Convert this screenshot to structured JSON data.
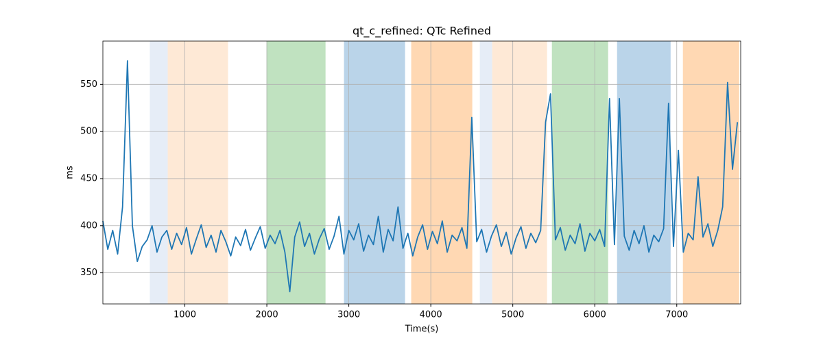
{
  "chart_data": {
    "type": "line",
    "title": "qt_c_refined: QTc Refined",
    "x_label": "Time(s)",
    "y_label": "ms",
    "x": [
      0,
      60,
      120,
      180,
      240,
      300,
      360,
      420,
      480,
      540,
      600,
      660,
      720,
      780,
      840,
      900,
      960,
      1020,
      1080,
      1140,
      1200,
      1260,
      1320,
      1380,
      1440,
      1500,
      1560,
      1620,
      1680,
      1740,
      1800,
      1860,
      1920,
      1980,
      2040,
      2100,
      2160,
      2220,
      2280,
      2340,
      2400,
      2460,
      2520,
      2580,
      2640,
      2700,
      2760,
      2820,
      2880,
      2940,
      3000,
      3060,
      3120,
      3180,
      3240,
      3300,
      3360,
      3420,
      3480,
      3540,
      3600,
      3660,
      3720,
      3780,
      3840,
      3900,
      3960,
      4020,
      4080,
      4140,
      4200,
      4260,
      4320,
      4380,
      4440,
      4500,
      4560,
      4620,
      4680,
      4740,
      4800,
      4860,
      4920,
      4980,
      5040,
      5100,
      5160,
      5220,
      5280,
      5340,
      5400,
      5460,
      5520,
      5580,
      5640,
      5700,
      5760,
      5820,
      5880,
      5940,
      6000,
      6060,
      6120,
      6180,
      6240,
      6300,
      6360,
      6420,
      6480,
      6540,
      6600,
      6660,
      6720,
      6780,
      6840,
      6900,
      6960,
      7020,
      7080,
      7140,
      7200,
      7260,
      7320,
      7380,
      7440,
      7500,
      7560,
      7620,
      7680,
      7740
    ],
    "values": [
      405,
      375,
      395,
      370,
      420,
      575,
      400,
      362,
      378,
      385,
      400,
      372,
      388,
      395,
      375,
      392,
      380,
      398,
      370,
      386,
      401,
      377,
      390,
      372,
      395,
      383,
      368,
      388,
      379,
      396,
      374,
      387,
      399,
      376,
      390,
      381,
      395,
      372,
      330,
      388,
      404,
      378,
      392,
      370,
      386,
      397,
      375,
      389,
      410,
      370,
      395,
      385,
      402,
      373,
      390,
      380,
      410,
      372,
      396,
      384,
      420,
      376,
      392,
      368,
      388,
      401,
      375,
      394,
      381,
      405,
      372,
      390,
      384,
      398,
      376,
      515,
      383,
      396,
      372,
      389,
      401,
      378,
      393,
      370,
      387,
      399,
      376,
      392,
      382,
      395,
      510,
      540,
      385,
      398,
      374,
      390,
      381,
      402,
      373,
      392,
      384,
      396,
      378,
      535,
      380,
      535,
      389,
      374,
      395,
      381,
      400,
      372,
      390,
      383,
      397,
      530,
      378,
      480,
      372,
      392,
      385,
      452,
      388,
      402,
      378,
      395,
      420,
      552,
      460,
      510
    ],
    "color": "#1f77b4",
    "spans": [
      {
        "x0": 573,
        "x1": 791,
        "color": "#e6edf7"
      },
      {
        "x0": 791,
        "x1": 1527,
        "color": "#fee9d6"
      },
      {
        "x0": 1996,
        "x1": 2716,
        "color": "#c0e2c0"
      },
      {
        "x0": 2941,
        "x1": 3686,
        "color": "#bad4e9"
      },
      {
        "x0": 3761,
        "x1": 4506,
        "color": "#ffd8b3"
      },
      {
        "x0": 4598,
        "x1": 4749,
        "color": "#e6edf7"
      },
      {
        "x0": 4749,
        "x1": 5418,
        "color": "#fee9d6"
      },
      {
        "x0": 5477,
        "x1": 6163,
        "color": "#c0e2c0"
      },
      {
        "x0": 6272,
        "x1": 6925,
        "color": "#bad4e9"
      },
      {
        "x0": 7075,
        "x1": 7762,
        "color": "#ffd8b3"
      }
    ],
    "xlim": [
      0,
      7780
    ],
    "ylim": [
      317,
      596
    ],
    "xticks": [
      1000,
      2000,
      3000,
      4000,
      5000,
      6000,
      7000
    ],
    "yticks": [
      350,
      400,
      450,
      500,
      550
    ],
    "grid": true
  }
}
